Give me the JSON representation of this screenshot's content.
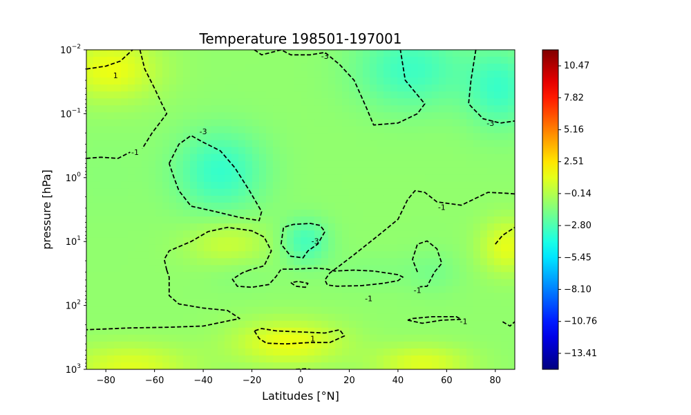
{
  "chart_data": {
    "type": "heatmap",
    "title": "Temperature 198501-197001",
    "xlabel": "Latitudes [°N]",
    "ylabel": "pressure [hPa]",
    "xlim": [
      -88,
      88
    ],
    "ylim": [
      1000,
      0.01
    ],
    "y_scale": "log",
    "grid": false,
    "x_ticks": [
      -80,
      -60,
      -40,
      -20,
      0,
      20,
      40,
      60,
      80
    ],
    "x_tick_labels": [
      "−80",
      "−60",
      "−40",
      "−20",
      "0",
      "20",
      "40",
      "60",
      "80"
    ],
    "y_ticks": [
      1000,
      100,
      10,
      1,
      0.1,
      0.01
    ],
    "y_tick_labels": [
      {
        "base": "10",
        "exp": "3"
      },
      {
        "base": "10",
        "exp": "2"
      },
      {
        "base": "10",
        "exp": "1"
      },
      {
        "base": "10",
        "exp": "0"
      },
      {
        "base": "10",
        "exp": "−1"
      },
      {
        "base": "10",
        "exp": "−2"
      }
    ],
    "colorbar": {
      "colormap": "jet",
      "range": [
        -14.74,
        11.8
      ],
      "ticks": [
        10.47,
        7.82,
        5.16,
        2.51,
        -0.14,
        -2.8,
        -5.45,
        -8.1,
        -10.76,
        -13.41
      ],
      "tick_labels": [
        "10.47",
        "7.82",
        "5.16",
        "2.51",
        "−0.14",
        "−2.80",
        "−5.45",
        "−8.10",
        "−10.76",
        "−13.41"
      ]
    },
    "field_anomalies": [
      {
        "lat": -78,
        "p": 0.02,
        "value": 1.4,
        "sx": 14,
        "sy": 0.35
      },
      {
        "lat": -80,
        "p": 0.9,
        "value": -1.2,
        "sx": 12,
        "sy": 0.5
      },
      {
        "lat": -33,
        "p": 0.8,
        "value": -3.4,
        "sx": 13,
        "sy": 0.45
      },
      {
        "lat": 2,
        "p": 10,
        "value": -3.0,
        "sx": 7,
        "sy": 0.25
      },
      {
        "lat": 45,
        "p": 0.02,
        "value": -3.2,
        "sx": 16,
        "sy": 0.45
      },
      {
        "lat": 82,
        "p": 0.04,
        "value": -3.2,
        "sx": 10,
        "sy": 0.45
      },
      {
        "lat": 85,
        "p": 12,
        "value": 1.2,
        "sx": 8,
        "sy": 0.3
      },
      {
        "lat": -70,
        "p": 900,
        "value": 1.0,
        "sx": 18,
        "sy": 0.25
      },
      {
        "lat": -5,
        "p": 380,
        "value": 1.4,
        "sx": 16,
        "sy": 0.25
      },
      {
        "lat": 50,
        "p": 800,
        "value": 1.0,
        "sx": 14,
        "sy": 0.2
      },
      {
        "lat": -30,
        "p": 11,
        "value": 0.5,
        "sx": 12,
        "sy": 0.25
      },
      {
        "lat": 55,
        "p": 30,
        "value": -1.6,
        "sx": 8,
        "sy": 0.25
      },
      {
        "lat": 30,
        "p": 30,
        "value": -1.4,
        "sx": 14,
        "sy": 0.2
      },
      {
        "lat": -25,
        "p": 30,
        "value": -1.4,
        "sx": 10,
        "sy": 0.2
      }
    ],
    "contour_interval": 2,
    "contours": [
      {
        "level": 1,
        "label": "1",
        "points": [
          [
            -88,
            0.02
          ],
          [
            -80,
            0.018
          ],
          [
            -74,
            0.015
          ],
          [
            -69,
            0.01
          ]
        ]
      },
      {
        "level": -1,
        "label": "-1",
        "points": [
          [
            -66,
            0.01
          ],
          [
            -64,
            0.02
          ],
          [
            -60,
            0.04
          ],
          [
            -57,
            0.07
          ],
          [
            -55,
            0.1
          ],
          [
            -61,
            0.2
          ],
          [
            -65,
            0.35
          ]
        ]
      },
      {
        "level": -1,
        "label": "-1",
        "points": [
          [
            -88,
            0.5
          ],
          [
            -82,
            0.48
          ],
          [
            -75,
            0.5
          ],
          [
            -70,
            0.4
          ]
        ]
      },
      {
        "level": -3,
        "label": "-3",
        "points": [
          [
            -54,
            0.6
          ],
          [
            -50,
            0.3
          ],
          [
            -45,
            0.22
          ],
          [
            -40,
            0.28
          ],
          [
            -33,
            0.38
          ],
          [
            -27,
            0.7
          ],
          [
            -21,
            1.6
          ],
          [
            -16,
            3.4
          ],
          [
            -17,
            4.7
          ],
          [
            -25,
            4.2
          ],
          [
            -35,
            3.4
          ],
          [
            -45,
            2.8
          ],
          [
            -50,
            1.6
          ],
          [
            -52,
            1.0
          ],
          [
            -54,
            0.6
          ]
        ]
      },
      {
        "level": -3,
        "label": "-3",
        "points": [
          [
            -19,
            0.01
          ],
          [
            -16,
            0.012
          ],
          [
            -12,
            0.011
          ],
          [
            -8,
            0.01
          ],
          [
            -4,
            0.012
          ],
          [
            4,
            0.012
          ],
          [
            10,
            0.011
          ],
          [
            16,
            0.017
          ],
          [
            22,
            0.03
          ],
          [
            27,
            0.08
          ],
          [
            30,
            0.15
          ],
          [
            40,
            0.14
          ],
          [
            48,
            0.1
          ],
          [
            51,
            0.07
          ],
          [
            43,
            0.03
          ],
          [
            41,
            0.01
          ]
        ]
      },
      {
        "level": -3,
        "label": "-3",
        "points": [
          [
            72,
            0.01
          ],
          [
            70,
            0.03
          ],
          [
            69,
            0.07
          ],
          [
            75,
            0.12
          ],
          [
            82,
            0.14
          ],
          [
            88,
            0.13
          ]
        ]
      },
      {
        "level": -3,
        "label": "-3",
        "points": [
          [
            -8,
            11
          ],
          [
            -7,
            6
          ],
          [
            -3,
            5.4
          ],
          [
            4,
            5.2
          ],
          [
            8,
            5.6
          ],
          [
            10,
            7
          ],
          [
            7,
            11
          ],
          [
            3,
            14
          ],
          [
            1,
            18
          ],
          [
            -4,
            17
          ],
          [
            -8,
            11
          ]
        ]
      },
      {
        "level": -1,
        "label": "-1",
        "points": [
          [
            -55,
            28
          ],
          [
            -56,
            19
          ],
          [
            -54,
            14
          ],
          [
            -45,
            10
          ],
          [
            -38,
            7
          ],
          [
            -30,
            6
          ],
          [
            -20,
            6.8
          ],
          [
            -15,
            8.5
          ],
          [
            -12,
            14
          ],
          [
            -15,
            24
          ],
          [
            -21,
            28
          ]
        ]
      },
      {
        "level": -1,
        "label": "-1",
        "points": [
          [
            -21,
            28
          ],
          [
            -24,
            31
          ],
          [
            -28,
            39
          ],
          [
            -26,
            50
          ],
          [
            -20,
            52
          ],
          [
            -13,
            47
          ],
          [
            -10,
            35
          ],
          [
            -8,
            27
          ],
          [
            -2,
            27
          ],
          [
            6,
            26
          ],
          [
            11,
            27
          ],
          [
            14,
            29
          ],
          [
            22,
            28
          ],
          [
            30,
            29
          ],
          [
            40,
            33
          ],
          [
            42,
            36
          ],
          [
            40,
            41
          ],
          [
            34,
            45
          ],
          [
            25,
            49
          ],
          [
            15,
            50
          ],
          [
            11,
            48
          ],
          [
            10,
            40
          ],
          [
            12,
            31
          ],
          [
            16,
            24
          ],
          [
            22,
            16
          ],
          [
            32,
            8
          ],
          [
            40,
            4.5
          ],
          [
            44,
            2.2
          ],
          [
            47,
            1.6
          ],
          [
            51,
            1.7
          ],
          [
            56,
            2.4
          ],
          [
            66,
            2.7
          ],
          [
            77,
            1.7
          ],
          [
            84,
            1.75
          ],
          [
            88,
            1.8
          ]
        ]
      },
      {
        "level": -1,
        "label": "-1",
        "points": [
          [
            -55,
            28
          ],
          [
            -54,
            36
          ],
          [
            -54,
            70
          ],
          [
            -50,
            95
          ],
          [
            -40,
            110
          ],
          [
            -30,
            120
          ],
          [
            -25,
            160
          ],
          [
            -40,
            210
          ],
          [
            -55,
            220
          ],
          [
            -70,
            225
          ],
          [
            -82,
            235
          ],
          [
            -88,
            240
          ]
        ]
      },
      {
        "level": 1,
        "label": "1",
        "points": [
          [
            -19,
            250
          ],
          [
            -17,
            330
          ],
          [
            -14,
            390
          ],
          [
            -6,
            400
          ],
          [
            4,
            380
          ],
          [
            12,
            380
          ],
          [
            18,
            300
          ],
          [
            16,
            240
          ],
          [
            10,
            270
          ],
          [
            0,
            260
          ],
          [
            -10,
            250
          ],
          [
            -16,
            230
          ],
          [
            -19,
            250
          ]
        ]
      },
      {
        "level": -1,
        "label": "-1",
        "points": [
          [
            48,
            30
          ],
          [
            46,
            19
          ],
          [
            48,
            11
          ],
          [
            52,
            9.8
          ],
          [
            56,
            13
          ],
          [
            58,
            22
          ],
          [
            55,
            30
          ],
          [
            52,
            50
          ],
          [
            49,
            51
          ]
        ]
      },
      {
        "level": -1,
        "label": "-1",
        "points": [
          [
            44,
            170
          ],
          [
            50,
            190
          ],
          [
            58,
            170
          ],
          [
            66,
            165
          ],
          [
            64,
            150
          ],
          [
            54,
            150
          ],
          [
            46,
            160
          ],
          [
            44,
            170
          ]
        ]
      },
      {
        "level": -1,
        "label": "-1",
        "points": [
          [
            80,
            11
          ],
          [
            83,
            8
          ],
          [
            88,
            6
          ]
        ]
      },
      {
        "level": -1,
        "label": "-1",
        "points": [
          [
            83,
            180
          ],
          [
            86,
            210
          ],
          [
            88,
            180
          ]
        ]
      },
      {
        "level": 1,
        "label": "",
        "points": [
          [
            -2,
            1000
          ],
          [
            2,
            980
          ],
          [
            4,
            1000
          ]
        ]
      },
      {
        "level": 1,
        "label": "",
        "points": [
          [
            -4,
            44
          ],
          [
            -2,
            50
          ],
          [
            2,
            52
          ],
          [
            3,
            45
          ],
          [
            -1,
            42
          ],
          [
            -4,
            44
          ]
        ]
      }
    ],
    "contour_labels": [
      {
        "text": "1",
        "lat": -76,
        "p": 0.025
      },
      {
        "text": "-1",
        "lat": -68,
        "p": 0.4
      },
      {
        "text": "-3",
        "lat": -40,
        "p": 0.19
      },
      {
        "text": "-3",
        "lat": 10,
        "p": 0.0125
      },
      {
        "text": "-3",
        "lat": 78,
        "p": 0.14
      },
      {
        "text": "-1",
        "lat": 58,
        "p": 2.9
      },
      {
        "text": "-3",
        "lat": 6,
        "p": 9.8
      },
      {
        "text": "-1",
        "lat": 28,
        "p": 78
      },
      {
        "text": "-1",
        "lat": 48,
        "p": 58
      },
      {
        "text": "1",
        "lat": 5,
        "p": 330
      },
      {
        "text": "-1",
        "lat": 67,
        "p": 178
      }
    ]
  }
}
